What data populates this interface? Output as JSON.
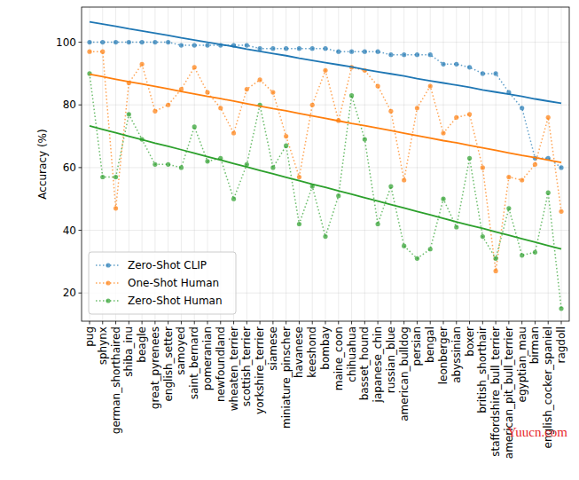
{
  "chart_data": {
    "type": "line",
    "y_label": "Accuracy (%)",
    "annotation": "Yuucn.com",
    "categories": [
      "pug",
      "sphynx",
      "german_shorthaired",
      "shiba_inu",
      "beagle",
      "great_pyrenees",
      "english_setter",
      "samoyed",
      "saint_bernard",
      "pomeranian",
      "newfoundland",
      "wheaten_terrier",
      "scottish_terrier",
      "yorkshire_terrier",
      "siamese",
      "miniature_pinscher",
      "havanese",
      "keeshond",
      "bombay",
      "maine_coon",
      "chihuahua",
      "basset_hound",
      "japanese_chin",
      "russian_blue",
      "american_bulldog",
      "persian",
      "bengal",
      "leonberger",
      "abyssinian",
      "boxer",
      "british_shorthair",
      "staffordshire_bull_terrier",
      "american_pit_bull_terrier",
      "egyptian_mau",
      "birman",
      "english_cocker_spaniel",
      "ragdoll"
    ],
    "series": [
      {
        "name": "Zero-Shot CLIP",
        "color": "#1f77b4",
        "marker": "circle",
        "line_style": "dotted",
        "values": [
          100,
          100,
          100,
          100,
          100,
          100,
          100,
          99,
          99,
          99,
          99,
          99,
          99,
          98,
          98,
          98,
          98,
          98,
          98,
          97,
          97,
          97,
          97,
          96,
          96,
          96,
          96,
          93,
          93,
          92,
          90,
          90,
          84,
          79,
          63,
          63,
          60
        ]
      },
      {
        "name": "One-Shot Human",
        "color": "#ff7f0e",
        "marker": "circle",
        "line_style": "dotted",
        "values": [
          97,
          97,
          47,
          87,
          93,
          78,
          80,
          85,
          92,
          84,
          79,
          71,
          85,
          88,
          84,
          70,
          57,
          80,
          91,
          75,
          92,
          91,
          86,
          78,
          56,
          79,
          86,
          71,
          76,
          77,
          60,
          27,
          57,
          56,
          61,
          76,
          46
        ]
      },
      {
        "name": "Zero-Shot Human",
        "color": "#2ca02c",
        "marker": "circle",
        "line_style": "dotted",
        "values": [
          90,
          57,
          57,
          77,
          69,
          61,
          61,
          60,
          73,
          62,
          63,
          50,
          61,
          80,
          60,
          67,
          42,
          54,
          38,
          51,
          83,
          69,
          42,
          54,
          35,
          31,
          34,
          50,
          41,
          63,
          38,
          31,
          47,
          32,
          33,
          52,
          15
        ]
      },
      {
        "color": "#1f77b4",
        "marker": "none",
        "line_style": "solid",
        "values": [
          106.5,
          105.8,
          105.1,
          104.3,
          103.6,
          102.9,
          102.2,
          101.4,
          100.7,
          100.0,
          99.3,
          98.6,
          97.8,
          97.1,
          96.4,
          95.7,
          94.9,
          94.2,
          93.5,
          92.8,
          92.1,
          91.3,
          90.6,
          89.9,
          89.2,
          88.4,
          87.7,
          87.0,
          86.3,
          85.6,
          84.8,
          84.1,
          83.4,
          82.7,
          81.9,
          81.2,
          80.5
        ]
      },
      {
        "color": "#ff7f0e",
        "marker": "none",
        "line_style": "solid",
        "values": [
          89.8,
          89.0,
          88.2,
          87.4,
          86.7,
          85.9,
          85.1,
          84.3,
          83.5,
          82.7,
          82.0,
          81.2,
          80.4,
          79.6,
          78.8,
          78.1,
          77.3,
          76.5,
          75.7,
          74.9,
          74.1,
          73.4,
          72.6,
          71.8,
          71.0,
          70.2,
          69.4,
          68.6,
          67.9,
          67.1,
          66.3,
          65.5,
          64.7,
          63.9,
          63.2,
          62.4,
          61.6
        ]
      },
      {
        "color": "#2ca02c",
        "marker": "none",
        "line_style": "solid",
        "values": [
          73.3,
          72.2,
          71.1,
          70.0,
          68.9,
          67.8,
          66.8,
          65.7,
          64.6,
          63.5,
          62.4,
          61.3,
          60.2,
          59.1,
          58.0,
          56.9,
          55.8,
          54.7,
          53.7,
          52.6,
          51.5,
          50.4,
          49.3,
          48.2,
          47.1,
          46.0,
          44.9,
          43.8,
          42.7,
          41.6,
          40.6,
          39.5,
          38.4,
          37.3,
          36.2,
          35.1,
          34.0
        ]
      }
    ],
    "ylim": [
      11,
      111.2
    ],
    "yticks": [
      20,
      40,
      60,
      80,
      100
    ],
    "grid": true,
    "legend": "lower left"
  }
}
